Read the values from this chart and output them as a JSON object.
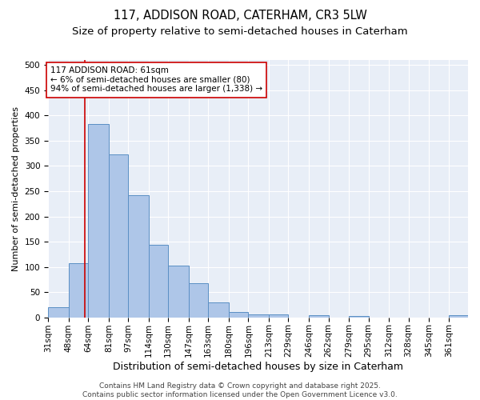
{
  "title1": "117, ADDISON ROAD, CATERHAM, CR3 5LW",
  "title2": "Size of property relative to semi-detached houses in Caterham",
  "xlabel": "Distribution of semi-detached houses by size in Caterham",
  "ylabel": "Number of semi-detached properties",
  "bin_labels": [
    "31sqm",
    "48sqm",
    "64sqm",
    "81sqm",
    "97sqm",
    "114sqm",
    "130sqm",
    "147sqm",
    "163sqm",
    "180sqm",
    "196sqm",
    "213sqm",
    "229sqm",
    "246sqm",
    "262sqm",
    "279sqm",
    "295sqm",
    "312sqm",
    "328sqm",
    "345sqm",
    "361sqm"
  ],
  "bar_heights": [
    20,
    107,
    383,
    323,
    242,
    144,
    102,
    68,
    30,
    10,
    6,
    6,
    0,
    4,
    0,
    3,
    0,
    0,
    0,
    0,
    4
  ],
  "bin_edges": [
    31,
    48,
    64,
    81,
    97,
    114,
    130,
    147,
    163,
    180,
    196,
    213,
    229,
    246,
    262,
    279,
    295,
    312,
    328,
    345,
    361,
    377
  ],
  "bar_color": "#aec6e8",
  "bar_edge_color": "#5a8fc4",
  "property_value": 61,
  "vline_color": "#cc0000",
  "annotation_line1": "117 ADDISON ROAD: 61sqm",
  "annotation_line2": "← 6% of semi-detached houses are smaller (80)",
  "annotation_line3": "94% of semi-detached houses are larger (1,338) →",
  "annotation_box_color": "#ffffff",
  "annotation_box_edge": "#cc0000",
  "ylim": [
    0,
    510
  ],
  "yticks": [
    0,
    50,
    100,
    150,
    200,
    250,
    300,
    350,
    400,
    450,
    500
  ],
  "background_color": "#e8eef7",
  "footer_text": "Contains HM Land Registry data © Crown copyright and database right 2025.\nContains public sector information licensed under the Open Government Licence v3.0.",
  "title1_fontsize": 10.5,
  "title2_fontsize": 9.5,
  "xlabel_fontsize": 9,
  "ylabel_fontsize": 8,
  "tick_fontsize": 7.5,
  "annotation_fontsize": 7.5,
  "footer_fontsize": 6.5
}
